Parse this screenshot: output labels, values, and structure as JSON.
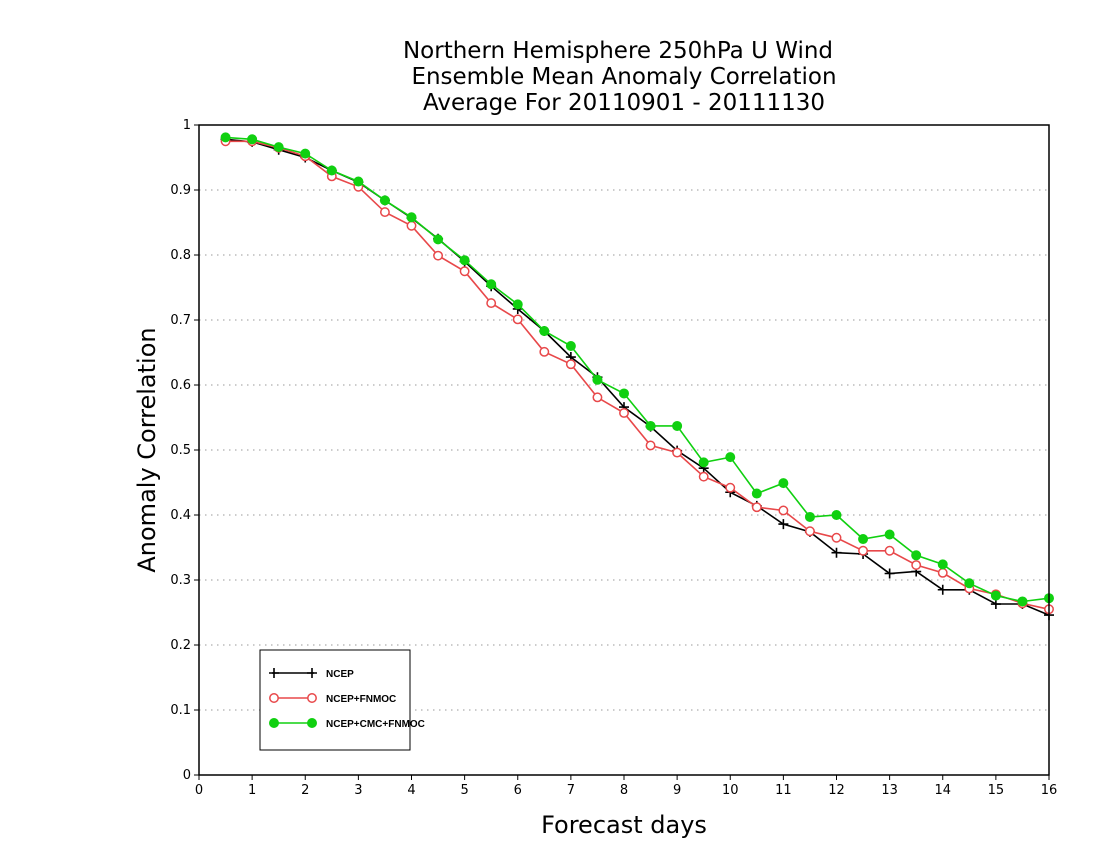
{
  "chart_data": {
    "type": "line",
    "title_lines": [
      "Northern Hemisphere 250hPa U Wind",
      "Ensemble Mean Anomaly Correlation",
      "Average For 20110901 - 20111130"
    ],
    "xlabel": "Forecast days",
    "ylabel": "Anomaly Correlation",
    "xlim": [
      0,
      16
    ],
    "ylim": [
      0,
      1
    ],
    "x_ticks": [
      0,
      1,
      2,
      3,
      4,
      5,
      6,
      7,
      8,
      9,
      10,
      11,
      12,
      13,
      14,
      15,
      16
    ],
    "y_ticks": [
      0,
      0.1,
      0.2,
      0.3,
      0.4,
      0.5,
      0.6,
      0.7,
      0.8,
      0.9,
      1
    ],
    "grid": "horizontal dotted",
    "legend_position": "bottom-left",
    "x": [
      0.5,
      1,
      1.5,
      2,
      2.5,
      3,
      3.5,
      4,
      4.5,
      5,
      5.5,
      6,
      6.5,
      7,
      7.5,
      8,
      8.5,
      9,
      9.5,
      10,
      10.5,
      11,
      11.5,
      12,
      12.5,
      13,
      13.5,
      14,
      14.5,
      15,
      15.5,
      16
    ],
    "series": [
      {
        "name": "NCEP",
        "color": "#000000",
        "marker": "plus",
        "values": [
          0.978,
          0.974,
          0.962,
          0.95,
          0.93,
          0.912,
          0.884,
          0.857,
          0.825,
          0.79,
          0.752,
          0.717,
          0.683,
          0.643,
          0.612,
          0.566,
          0.536,
          0.499,
          0.472,
          0.435,
          0.414,
          0.386,
          0.374,
          0.342,
          0.34,
          0.31,
          0.313,
          0.285,
          0.285,
          0.263,
          0.263,
          0.246
        ]
      },
      {
        "name": "NCEP+FNMOC",
        "color": "#e8484a",
        "marker": "open-circle",
        "values": [
          0.975,
          0.975,
          0.965,
          0.952,
          0.921,
          0.905,
          0.866,
          0.845,
          0.799,
          0.775,
          0.726,
          0.701,
          0.651,
          0.632,
          0.581,
          0.557,
          0.507,
          0.496,
          0.459,
          0.442,
          0.412,
          0.407,
          0.375,
          0.365,
          0.345,
          0.345,
          0.323,
          0.311,
          0.287,
          0.278,
          0.264,
          0.255
        ]
      },
      {
        "name": "NCEP+CMC+FNMOC",
        "color": "#10d010",
        "marker": "filled-circle",
        "values": [
          0.981,
          0.978,
          0.966,
          0.956,
          0.93,
          0.913,
          0.884,
          0.858,
          0.824,
          0.792,
          0.755,
          0.724,
          0.683,
          0.66,
          0.608,
          0.587,
          0.537,
          0.537,
          0.481,
          0.489,
          0.433,
          0.449,
          0.397,
          0.4,
          0.363,
          0.37,
          0.338,
          0.324,
          0.295,
          0.276,
          0.267,
          0.272
        ]
      }
    ]
  }
}
